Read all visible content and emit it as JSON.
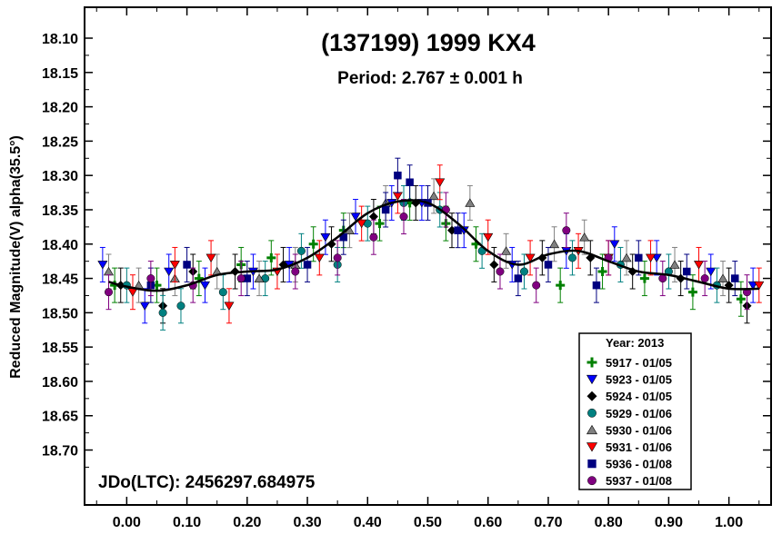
{
  "chart_data": {
    "type": "scatter",
    "title": "(137199) 1999 KX4",
    "subtitle": "Period: 2.767 ± 0.001 h",
    "ylabel": "Reduced Magnitude(V) alpha(35.5°)",
    "xlabel": "",
    "annotation": "JDo(LTC): 2456297.684975",
    "xlim": [
      -0.07,
      1.07
    ],
    "ylim": [
      18.055,
      18.78
    ],
    "y_inverted": true,
    "x_ticks": [
      0.0,
      0.1,
      0.2,
      0.3,
      0.4,
      0.5,
      0.6,
      0.7,
      0.8,
      0.9,
      1.0
    ],
    "x_tick_labels": [
      "0.00",
      "0.10",
      "0.20",
      "0.30",
      "0.40",
      "0.50",
      "0.60",
      "0.70",
      "0.80",
      "0.90",
      "1.00"
    ],
    "y_ticks": [
      18.1,
      18.15,
      18.2,
      18.25,
      18.3,
      18.35,
      18.4,
      18.45,
      18.5,
      18.55,
      18.6,
      18.65,
      18.7
    ],
    "y_tick_labels": [
      "18.10",
      "18.15",
      "18.20",
      "18.25",
      "18.30",
      "18.35",
      "18.40",
      "18.45",
      "18.50",
      "18.55",
      "18.60",
      "18.65",
      "18.70"
    ],
    "legend_title": "Year: 2013",
    "legend_position": "bottom-right",
    "grid": false,
    "fit_curve": {
      "x": [
        -0.03,
        0.0,
        0.05,
        0.1,
        0.15,
        0.2,
        0.25,
        0.3,
        0.35,
        0.4,
        0.45,
        0.5,
        0.55,
        0.6,
        0.65,
        0.7,
        0.75,
        0.8,
        0.85,
        0.9,
        0.95,
        1.0,
        1.05
      ],
      "y": [
        18.455,
        18.462,
        18.468,
        18.46,
        18.445,
        18.44,
        18.437,
        18.42,
        18.39,
        18.355,
        18.338,
        18.34,
        18.37,
        18.41,
        18.43,
        18.415,
        18.41,
        18.425,
        18.44,
        18.445,
        18.455,
        18.465,
        18.465
      ]
    },
    "series": [
      {
        "name": "5917 - 01/05",
        "color": "#008000",
        "marker": "plus",
        "x": [
          -0.02,
          0.05,
          0.12,
          0.19,
          0.24,
          0.31,
          0.36,
          0.42,
          0.47,
          0.53,
          0.58,
          0.72,
          0.79,
          0.86,
          0.94,
          1.02
        ],
        "y": [
          18.46,
          18.46,
          18.45,
          18.43,
          18.42,
          18.4,
          18.38,
          18.37,
          18.34,
          18.37,
          18.4,
          18.46,
          18.44,
          18.45,
          18.47,
          18.48
        ]
      },
      {
        "name": "5923 - 01/05",
        "color": "#0000ff",
        "marker": "triangle-down",
        "x": [
          -0.04,
          0.03,
          0.07,
          0.13,
          0.21,
          0.27,
          0.33,
          0.38,
          0.44,
          0.49,
          0.56,
          0.64,
          0.73,
          0.81,
          0.88,
          0.97,
          1.04
        ],
        "y": [
          18.43,
          18.49,
          18.44,
          18.46,
          18.44,
          18.43,
          18.39,
          18.36,
          18.34,
          18.34,
          18.38,
          18.43,
          18.41,
          18.4,
          18.42,
          18.44,
          18.46
        ]
      },
      {
        "name": "5924 - 01/05",
        "color": "#000000",
        "marker": "diamond",
        "x": [
          -0.01,
          0.06,
          0.11,
          0.18,
          0.26,
          0.34,
          0.41,
          0.48,
          0.54,
          0.61,
          0.69,
          0.77,
          0.84,
          0.92,
          1.0,
          1.03
        ],
        "y": [
          18.46,
          18.49,
          18.44,
          18.44,
          18.43,
          18.4,
          18.36,
          18.34,
          18.38,
          18.43,
          18.42,
          18.42,
          18.44,
          18.45,
          18.46,
          18.49
        ]
      },
      {
        "name": "5929 - 01/06",
        "color": "#008080",
        "marker": "circle",
        "x": [
          0.0,
          0.06,
          0.09,
          0.16,
          0.23,
          0.29,
          0.35,
          0.4,
          0.46,
          0.52,
          0.59,
          0.66,
          0.74,
          0.82,
          0.9,
          0.98
        ],
        "y": [
          18.46,
          18.5,
          18.49,
          18.47,
          18.45,
          18.41,
          18.43,
          18.37,
          18.34,
          18.35,
          18.41,
          18.44,
          18.42,
          18.43,
          18.44,
          18.46
        ]
      },
      {
        "name": "5930 - 01/06",
        "color": "#808080",
        "marker": "triangle-up",
        "x": [
          -0.03,
          0.02,
          0.08,
          0.15,
          0.22,
          0.28,
          0.37,
          0.43,
          0.51,
          0.57,
          0.63,
          0.71,
          0.76,
          0.83,
          0.91,
          0.99
        ],
        "y": [
          18.44,
          18.46,
          18.45,
          18.44,
          18.45,
          18.43,
          18.38,
          18.34,
          18.33,
          18.34,
          18.41,
          18.4,
          18.39,
          18.42,
          18.43,
          18.45
        ]
      },
      {
        "name": "5931 - 01/06",
        "color": "#ff0000",
        "marker": "triangle-down",
        "x": [
          0.01,
          0.08,
          0.14,
          0.17,
          0.25,
          0.32,
          0.39,
          0.45,
          0.52,
          0.6,
          0.67,
          0.75,
          0.8,
          0.87,
          0.95,
          1.05
        ],
        "y": [
          18.47,
          18.43,
          18.42,
          18.49,
          18.44,
          18.42,
          18.37,
          18.33,
          18.31,
          18.39,
          18.42,
          18.41,
          18.42,
          18.42,
          18.43,
          18.46
        ]
      },
      {
        "name": "5936 - 01/08",
        "color": "#000080",
        "marker": "square",
        "x": [
          0.04,
          0.1,
          0.2,
          0.3,
          0.36,
          0.43,
          0.45,
          0.47,
          0.5,
          0.55,
          0.65,
          0.7,
          0.78,
          0.85,
          0.93,
          1.01
        ],
        "y": [
          18.46,
          18.43,
          18.45,
          18.43,
          18.39,
          18.35,
          18.3,
          18.31,
          18.34,
          18.38,
          18.45,
          18.43,
          18.46,
          18.42,
          18.44,
          18.45
        ]
      },
      {
        "name": "5937 - 01/08",
        "color": "#800080",
        "marker": "circle",
        "x": [
          -0.03,
          0.04,
          0.11,
          0.19,
          0.28,
          0.35,
          0.41,
          0.46,
          0.53,
          0.62,
          0.68,
          0.73,
          0.8,
          0.89,
          0.96,
          1.03
        ],
        "y": [
          18.47,
          18.45,
          18.46,
          18.45,
          18.44,
          18.42,
          18.39,
          18.36,
          18.35,
          18.44,
          18.46,
          18.38,
          18.42,
          18.45,
          18.45,
          18.47
        ]
      }
    ]
  }
}
